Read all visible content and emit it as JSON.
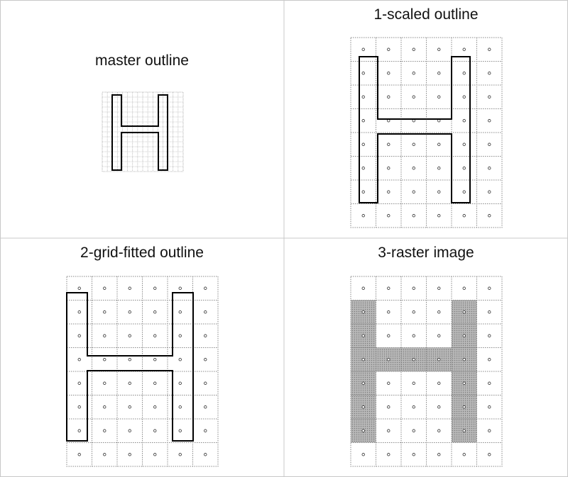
{
  "panels": [
    {
      "id": "master",
      "title": "master outline"
    },
    {
      "id": "scaled",
      "title": "1-scaled outline"
    },
    {
      "id": "gridfit",
      "title": "2-grid-fitted outline"
    },
    {
      "id": "raster",
      "title": "3-raster image"
    }
  ],
  "pixel_grid": {
    "columns": 6,
    "rows": 8
  },
  "master_grid": {
    "columns": 16,
    "rows": 16
  },
  "glyph": "H",
  "colors": {
    "panel_border": "#c8c8c8",
    "grid_line": "#8a8a8a",
    "outline": "#000000",
    "raster_fill": "#a8a8a8",
    "text": "#111111"
  }
}
